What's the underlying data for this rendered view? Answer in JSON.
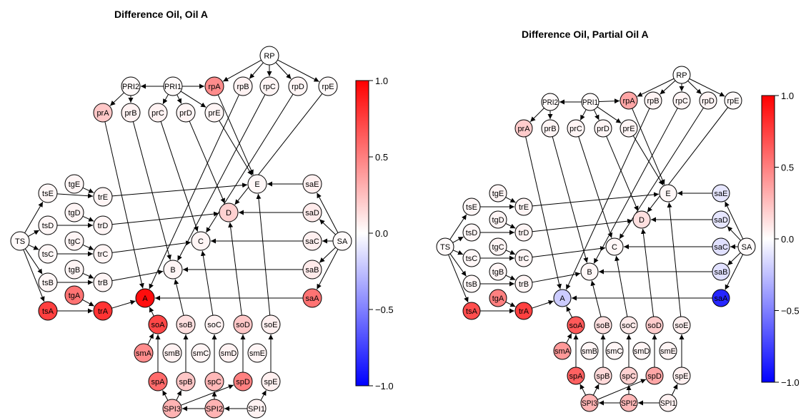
{
  "panels": [
    {
      "id": "oil-a",
      "title": "Difference Oil, Oil A",
      "values": {
        "RP": 0.0,
        "PRI2": 0.02,
        "PRI1": 0.02,
        "rpA": 0.45,
        "rpB": 0.05,
        "rpC": 0.04,
        "rpD": 0.04,
        "rpE": 0.02,
        "prA": 0.22,
        "prB": 0.05,
        "prC": 0.05,
        "prD": 0.04,
        "prE": 0.04,
        "E": 0.03,
        "D": 0.18,
        "C": 0.04,
        "B": 0.04,
        "A": 0.95,
        "saE": 0.06,
        "saD": 0.08,
        "saC": 0.06,
        "saB": 0.08,
        "saA": 0.55,
        "SA": 0.02,
        "TS": 0.02,
        "tsE": 0.03,
        "tsD": 0.03,
        "tsC": 0.03,
        "tsB": 0.03,
        "tsA": 0.75,
        "tgE": 0.04,
        "tgD": 0.04,
        "tgC": 0.04,
        "tgB": 0.04,
        "tgA": 0.55,
        "trE": 0.04,
        "trD": 0.04,
        "trC": 0.04,
        "trB": 0.04,
        "trA": 0.8,
        "soA": 0.72,
        "soB": 0.12,
        "soC": 0.05,
        "soD": 0.22,
        "soE": 0.06,
        "smA": 0.45,
        "smB": 0.05,
        "smC": 0.04,
        "smD": 0.05,
        "smE": 0.04,
        "spA": 0.58,
        "spB": 0.22,
        "spC": 0.28,
        "spD": 0.5,
        "spE": 0.06,
        "SPI3": 0.3,
        "SPI2": 0.3,
        "SPI1": 0.05
      },
      "colorbar": {
        "ticks": [
          "1.0",
          "0.5",
          "0.0",
          "−0.5",
          "−1.0"
        ]
      }
    },
    {
      "id": "partial-oil-a",
      "title": "Difference Oil, Partial Oil A",
      "values": {
        "RP": 0.0,
        "PRI2": 0.02,
        "PRI1": 0.02,
        "rpA": 0.35,
        "rpB": 0.04,
        "rpC": 0.04,
        "rpD": 0.04,
        "rpE": 0.02,
        "prA": 0.2,
        "prB": 0.04,
        "prC": 0.04,
        "prD": 0.04,
        "prE": 0.04,
        "E": 0.03,
        "D": 0.12,
        "C": 0.03,
        "B": 0.03,
        "A": -0.2,
        "saE": -0.1,
        "saD": -0.1,
        "saC": -0.12,
        "saB": -0.12,
        "saA": -0.85,
        "SA": 0.02,
        "TS": 0.02,
        "tsE": 0.03,
        "tsD": 0.03,
        "tsC": 0.03,
        "tsB": 0.03,
        "tsA": 0.7,
        "tgE": 0.04,
        "tgD": 0.04,
        "tgC": 0.04,
        "tgB": 0.04,
        "tgA": 0.5,
        "trE": 0.04,
        "trD": 0.04,
        "trC": 0.04,
        "trB": 0.04,
        "trA": 0.75,
        "soA": 0.65,
        "soB": 0.12,
        "soC": 0.08,
        "soD": 0.2,
        "soE": 0.06,
        "smA": 0.4,
        "smB": 0.04,
        "smC": 0.04,
        "smD": 0.04,
        "smE": 0.04,
        "spA": 0.62,
        "spB": 0.15,
        "spC": 0.18,
        "spD": 0.35,
        "spE": 0.06,
        "SPI3": 0.3,
        "SPI2": 0.28,
        "SPI1": 0.05
      },
      "colorbar": {
        "ticks": [
          "1.0",
          "0.5",
          "0.0",
          "−0.5",
          "−1.0"
        ]
      }
    }
  ],
  "colors": {
    "high": "#ff0000",
    "mid": "#ffffff",
    "low": "#0000ff"
  }
}
